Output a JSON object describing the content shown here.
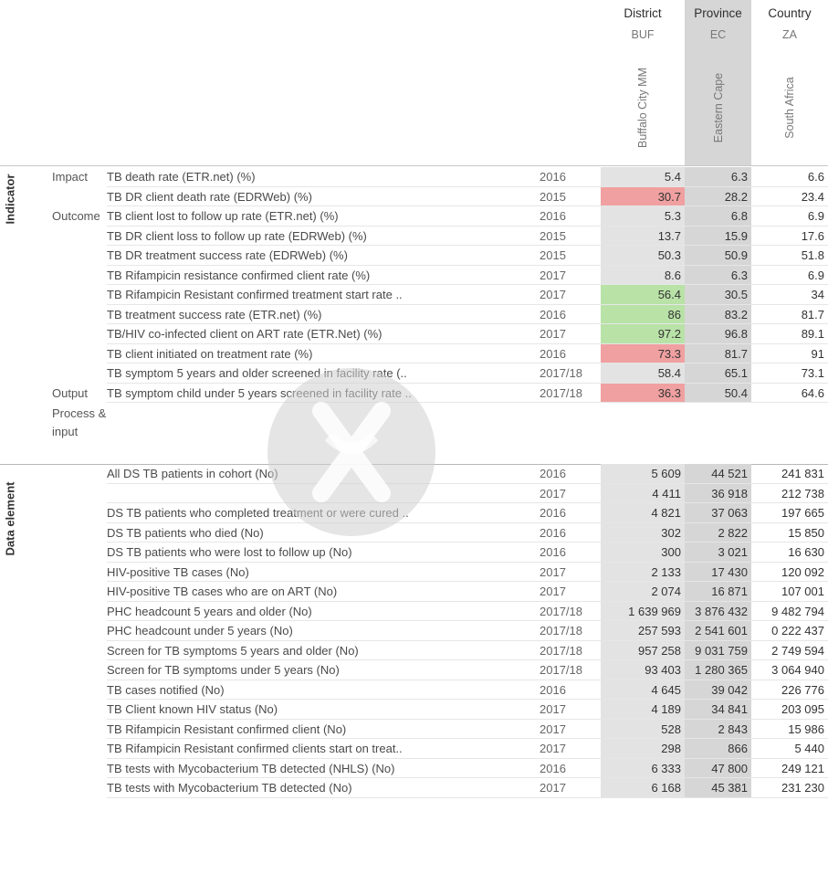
{
  "columns": [
    {
      "level": "District",
      "code": "BUF",
      "name": "Buffalo City MM"
    },
    {
      "level": "Province",
      "code": "EC",
      "name": "Eastern Cape"
    },
    {
      "level": "Country",
      "code": "ZA",
      "name": "South Africa"
    }
  ],
  "sections": {
    "indicator": "Indicator",
    "data_element": "Data element"
  },
  "groups": {
    "impact": "Impact",
    "outcome": "Outcome",
    "output": "Output",
    "process_1": "Process &",
    "process_2": "input"
  },
  "indicators": [
    {
      "label": "TB death rate (ETR.net) (%)",
      "year": "2016",
      "d": "5.4",
      "p": "6.3",
      "c": "6.6",
      "flag": ""
    },
    {
      "label": "TB DR client death rate (EDRWeb) (%)",
      "year": "2015",
      "d": "30.7",
      "p": "28.2",
      "c": "23.4",
      "flag": "red"
    },
    {
      "label": "TB client lost to follow up rate (ETR.net) (%)",
      "year": "2016",
      "d": "5.3",
      "p": "6.8",
      "c": "6.9",
      "flag": ""
    },
    {
      "label": "TB DR client loss to follow up rate (EDRWeb) (%)",
      "year": "2015",
      "d": "13.7",
      "p": "15.9",
      "c": "17.6",
      "flag": ""
    },
    {
      "label": "TB DR treatment success rate (EDRWeb) (%)",
      "year": "2015",
      "d": "50.3",
      "p": "50.9",
      "c": "51.8",
      "flag": ""
    },
    {
      "label": "TB Rifampicin resistance confirmed client rate (%)",
      "year": "2017",
      "d": "8.6",
      "p": "6.3",
      "c": "6.9",
      "flag": ""
    },
    {
      "label": "TB Rifampicin Resistant confirmed treatment start rate ..",
      "year": "2017",
      "d": "56.4",
      "p": "30.5",
      "c": "34",
      "flag": "green"
    },
    {
      "label": "TB treatment success rate (ETR.net) (%)",
      "year": "2016",
      "d": "86",
      "p": "83.2",
      "c": "81.7",
      "flag": "green"
    },
    {
      "label": "TB/HIV co-infected client on ART rate (ETR.Net) (%)",
      "year": "2017",
      "d": "97.2",
      "p": "96.8",
      "c": "89.1",
      "flag": "green"
    },
    {
      "label": "TB client initiated on treatment rate (%)",
      "year": "2016",
      "d": "73.3",
      "p": "81.7",
      "c": "91",
      "flag": "red"
    },
    {
      "label": "TB symptom 5 years and older screened in facility rate (..",
      "year": "2017/18",
      "d": "58.4",
      "p": "65.1",
      "c": "73.1",
      "flag": ""
    },
    {
      "label": "TB symptom child under 5 years screened in facility rate ..",
      "year": "2017/18",
      "d": "36.3",
      "p": "50.4",
      "c": "64.6",
      "flag": "red"
    }
  ],
  "data_elements": [
    {
      "label": "All DS TB patients in cohort (No)",
      "year": "2016",
      "d": "5 609",
      "p": "44 521",
      "c": "241 831"
    },
    {
      "label": "",
      "year": "2017",
      "d": "4 411",
      "p": "36 918",
      "c": "212 738"
    },
    {
      "label": "DS TB patients who completed treatment or were cured ..",
      "year": "2016",
      "d": "4 821",
      "p": "37 063",
      "c": "197 665"
    },
    {
      "label": "DS TB patients who died (No)",
      "year": "2016",
      "d": "302",
      "p": "2 822",
      "c": "15 850"
    },
    {
      "label": "DS TB patients who were lost to follow up (No)",
      "year": "2016",
      "d": "300",
      "p": "3 021",
      "c": "16 630"
    },
    {
      "label": "HIV-positive TB cases (No)",
      "year": "2017",
      "d": "2 133",
      "p": "17 430",
      "c": "120 092"
    },
    {
      "label": "HIV-positive TB cases who are on ART (No)",
      "year": "2017",
      "d": "2 074",
      "p": "16 871",
      "c": "107 001"
    },
    {
      "label": "PHC headcount 5 years and older (No)",
      "year": "2017/18",
      "d": "1 639 969",
      "p": "3 876 432",
      "c": "9 482 794"
    },
    {
      "label": "PHC headcount under 5 years (No)",
      "year": "2017/18",
      "d": "257 593",
      "p": "2 541 601",
      "c": "0 222 437"
    },
    {
      "label": "Screen for TB symptoms 5 years and older (No)",
      "year": "2017/18",
      "d": "957 258",
      "p": "9 031 759",
      "c": "2 749 594"
    },
    {
      "label": "Screen for TB symptoms under 5 years (No)",
      "year": "2017/18",
      "d": "93 403",
      "p": "1 280 365",
      "c": "3 064 940"
    },
    {
      "label": "TB cases notified (No)",
      "year": "2016",
      "d": "4 645",
      "p": "39 042",
      "c": "226 776"
    },
    {
      "label": "TB Client known HIV status (No)",
      "year": "2017",
      "d": "4 189",
      "p": "34 841",
      "c": "203 095"
    },
    {
      "label": "TB Rifampicin Resistant confirmed client (No)",
      "year": "2017",
      "d": "528",
      "p": "2 843",
      "c": "15 986"
    },
    {
      "label": "TB Rifampicin Resistant confirmed clients start on treat..",
      "year": "2017",
      "d": "298",
      "p": "866",
      "c": "5 440"
    },
    {
      "label": "TB tests with Mycobacterium TB detected (NHLS) (No)",
      "year": "2016",
      "d": "6 333",
      "p": "47 800",
      "c": "249 121"
    },
    {
      "label": "TB tests with Mycobacterium TB detected (No)",
      "year": "2017",
      "d": "6 168",
      "p": "45 381",
      "c": "231 230"
    }
  ],
  "colors": {
    "red": "#f0a0a0",
    "green": "#b9e2a7",
    "district_bg": "#e3e3e3",
    "province_bg": "#d6d6d6"
  }
}
